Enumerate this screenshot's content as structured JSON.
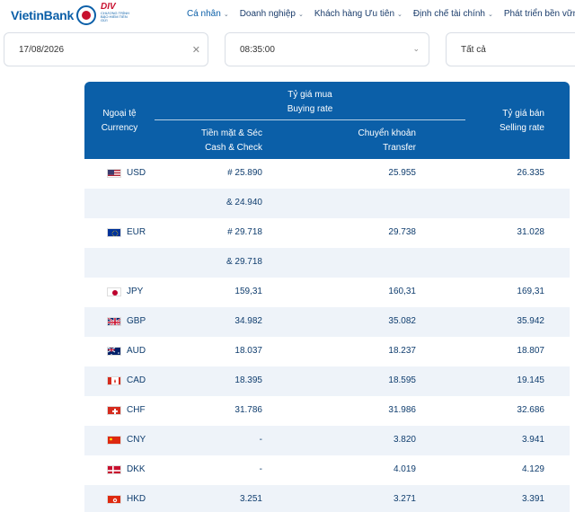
{
  "brand": {
    "logo_text": "VietinBank",
    "badge_title": "DIV",
    "badge_sub": "CHƯƠNG TRÌNH BẢO HIỂM TIỀN GỬI"
  },
  "nav": [
    {
      "label": "Cá nhân",
      "active": true
    },
    {
      "label": "Doanh nghiệp"
    },
    {
      "label": "Khách hàng Ưu tiên"
    },
    {
      "label": "Định chế tài chính"
    },
    {
      "label": "Phát triển bền vững"
    }
  ],
  "filters": {
    "date": "17/08/2026",
    "time": "08:35:00",
    "all": "Tất cả"
  },
  "table": {
    "currency_vi": "Ngoại tệ",
    "currency_en": "Currency",
    "buying_vi": "Tỷ giá mua",
    "buying_en": "Buying rate",
    "cash_vi": "Tiền mặt & Séc",
    "cash_en": "Cash & Check",
    "transfer_vi": "Chuyển khoản",
    "transfer_en": "Transfer",
    "selling_vi": "Tỷ giá bán",
    "selling_en": "Selling rate"
  },
  "rows": [
    {
      "code": "USD",
      "flag": "us",
      "cash": "# 25.890",
      "transfer": "25.955",
      "sell": "26.335"
    },
    {
      "code": "",
      "flag": "",
      "cash": "& 24.940",
      "transfer": "",
      "sell": ""
    },
    {
      "code": "EUR",
      "flag": "eu",
      "cash": "# 29.718",
      "transfer": "29.738",
      "sell": "31.028"
    },
    {
      "code": "",
      "flag": "",
      "cash": "& 29.718",
      "transfer": "",
      "sell": ""
    },
    {
      "code": "JPY",
      "flag": "jp",
      "cash": "159,31",
      "transfer": "160,31",
      "sell": "169,31"
    },
    {
      "code": "GBP",
      "flag": "gb",
      "cash": "34.982",
      "transfer": "35.082",
      "sell": "35.942"
    },
    {
      "code": "AUD",
      "flag": "au",
      "cash": "18.037",
      "transfer": "18.237",
      "sell": "18.807"
    },
    {
      "code": "CAD",
      "flag": "ca",
      "cash": "18.395",
      "transfer": "18.595",
      "sell": "19.145"
    },
    {
      "code": "CHF",
      "flag": "ch",
      "cash": "31.786",
      "transfer": "31.986",
      "sell": "32.686"
    },
    {
      "code": "CNY",
      "flag": "cn",
      "cash": "-",
      "transfer": "3.820",
      "sell": "3.941"
    },
    {
      "code": "DKK",
      "flag": "dk",
      "cash": "-",
      "transfer": "4.019",
      "sell": "4.129"
    },
    {
      "code": "HKD",
      "flag": "hk",
      "cash": "3.251",
      "transfer": "3.271",
      "sell": "3.391"
    }
  ],
  "colors": {
    "brand_blue": "#0b5fa8",
    "brand_red": "#c8102e",
    "row_alt": "#eef3f9"
  }
}
